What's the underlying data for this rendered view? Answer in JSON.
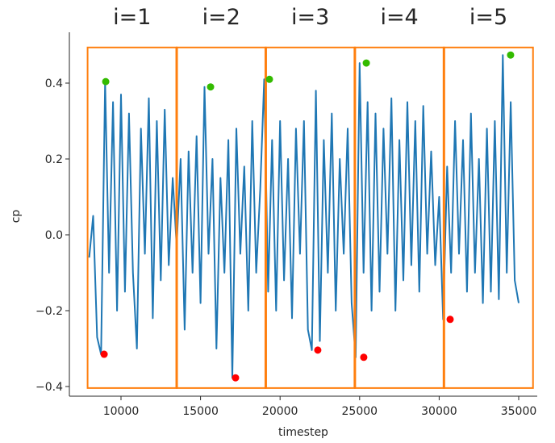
{
  "chart_data": {
    "type": "line",
    "xlabel": "timestep",
    "ylabel": "cp",
    "xlim": [
      7400,
      36000
    ],
    "ylim": [
      -0.42,
      0.52
    ],
    "xticks": [
      10000,
      15000,
      20000,
      25000,
      30000,
      35000
    ],
    "xtick_labels": [
      "10000",
      "15000",
      "20000",
      "25000",
      "30000",
      "35000"
    ],
    "yticks": [
      -0.4,
      -0.2,
      0.0,
      0.2,
      0.4
    ],
    "ytick_labels": [
      "−0.4",
      "−0.2",
      "0.0",
      "0.2",
      "0.4"
    ],
    "grid": false,
    "colors": {
      "line": "#1f77b4",
      "segment": "#ff7f0e",
      "max": "#33bb00",
      "min": "#ff0000"
    },
    "segments": [
      {
        "label": "i=1",
        "x0": 7900,
        "x1": 13500
      },
      {
        "label": "i=2",
        "x0": 13500,
        "x1": 19100
      },
      {
        "label": "i=3",
        "x0": 19100,
        "x1": 24700
      },
      {
        "label": "i=4",
        "x0": 24700,
        "x1": 30300
      },
      {
        "label": "i=5",
        "x0": 30300,
        "x1": 35900
      }
    ],
    "segment_ylim": [
      -0.404,
      0.494
    ],
    "max_points": [
      {
        "x": 9040,
        "y": 0.404
      },
      {
        "x": 15630,
        "y": 0.39
      },
      {
        "x": 19330,
        "y": 0.41
      },
      {
        "x": 25420,
        "y": 0.453
      },
      {
        "x": 34490,
        "y": 0.474
      }
    ],
    "min_points": [
      {
        "x": 8940,
        "y": -0.315
      },
      {
        "x": 17200,
        "y": -0.377
      },
      {
        "x": 22370,
        "y": -0.304
      },
      {
        "x": 25260,
        "y": -0.323
      },
      {
        "x": 30690,
        "y": -0.223
      }
    ],
    "series": [
      {
        "name": "cp",
        "x_start": 8000,
        "x_step": 250,
        "values": [
          -0.06,
          0.05,
          -0.27,
          -0.315,
          0.404,
          -0.1,
          0.35,
          -0.2,
          0.37,
          -0.15,
          0.32,
          -0.1,
          -0.3,
          0.28,
          -0.05,
          0.36,
          -0.22,
          0.3,
          -0.12,
          0.33,
          -0.08,
          0.15,
          -0.03,
          0.2,
          -0.25,
          0.22,
          -0.1,
          0.26,
          -0.18,
          0.39,
          -0.05,
          0.2,
          -0.3,
          0.15,
          -0.1,
          0.25,
          -0.377,
          0.28,
          -0.05,
          0.18,
          -0.2,
          0.3,
          -0.1,
          0.12,
          0.41,
          -0.15,
          0.25,
          -0.2,
          0.3,
          -0.12,
          0.2,
          -0.22,
          0.28,
          -0.05,
          0.3,
          -0.25,
          -0.304,
          0.38,
          -0.28,
          0.25,
          -0.1,
          0.32,
          -0.2,
          0.2,
          -0.05,
          0.28,
          -0.18,
          -0.323,
          0.453,
          -0.1,
          0.35,
          -0.2,
          0.32,
          -0.15,
          0.28,
          -0.05,
          0.36,
          -0.2,
          0.25,
          -0.12,
          0.35,
          -0.08,
          0.3,
          -0.15,
          0.34,
          -0.05,
          0.22,
          -0.08,
          0.1,
          -0.223,
          0.18,
          -0.1,
          0.3,
          -0.05,
          0.25,
          -0.15,
          0.32,
          -0.1,
          0.2,
          -0.18,
          0.28,
          -0.15,
          0.3,
          -0.17,
          0.474,
          -0.1,
          0.35,
          -0.12,
          -0.18
        ]
      }
    ]
  }
}
